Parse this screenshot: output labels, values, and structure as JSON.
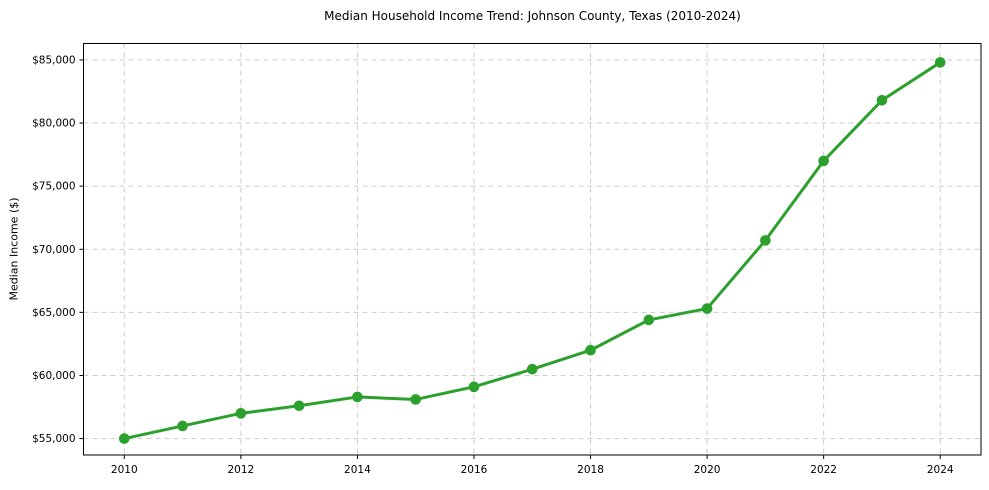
{
  "chart_data": {
    "type": "line",
    "title": "Median Household Income Trend: Johnson County, Texas (2010-2024)",
    "xlabel": "",
    "ylabel": "Median Income ($)",
    "x": [
      2010,
      2011,
      2012,
      2013,
      2014,
      2015,
      2016,
      2017,
      2018,
      2019,
      2020,
      2021,
      2022,
      2023,
      2024
    ],
    "values": [
      55000,
      56000,
      57000,
      57600,
      58300,
      58100,
      59100,
      60500,
      62000,
      64400,
      65300,
      70700,
      77000,
      81800,
      84800
    ],
    "series_name": "Median Household Income",
    "xticks": [
      2010,
      2012,
      2014,
      2016,
      2018,
      2020,
      2022,
      2024
    ],
    "xtick_labels": [
      "2010",
      "2012",
      "2014",
      "2016",
      "2018",
      "2020",
      "2022",
      "2024"
    ],
    "yticks": [
      55000,
      60000,
      65000,
      70000,
      75000,
      80000,
      85000
    ],
    "ytick_labels": [
      "$55,000",
      "$60,000",
      "$65,000",
      "$70,000",
      "$75,000",
      "$80,000",
      "$85,000"
    ],
    "xlim": [
      2009.3,
      2024.7
    ],
    "ylim": [
      53700,
      86300
    ],
    "grid": true,
    "legend": false,
    "colors": {
      "line": "#2ca02c",
      "marker": "#2ca02c",
      "grid": "#cccccc",
      "axis": "#000000",
      "text": "#000000",
      "background": "#ffffff"
    }
  }
}
